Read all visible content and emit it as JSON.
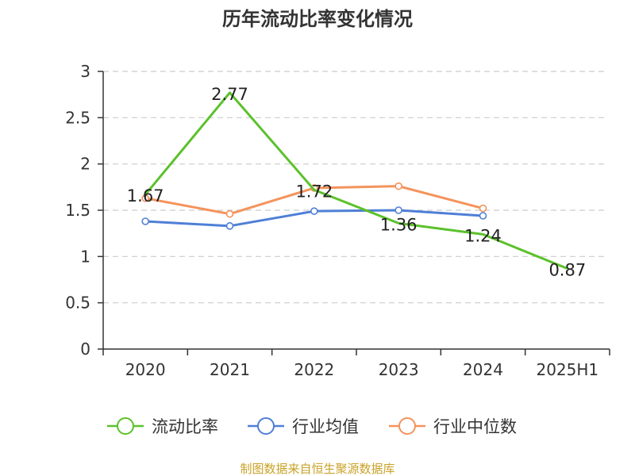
{
  "chart_data": {
    "type": "line",
    "title": "历年流动比率变化情况",
    "categories": [
      "2020",
      "2021",
      "2022",
      "2023",
      "2024",
      "2025H1"
    ],
    "ylim": [
      0,
      3
    ],
    "yticks": [
      "0",
      "0.5",
      "1",
      "1.5",
      "2",
      "2.5",
      "3"
    ],
    "grid": true,
    "legend_position": "bottom",
    "series": [
      {
        "name": "流动比率",
        "color": "#5cc12b",
        "values": [
          1.67,
          2.77,
          1.72,
          1.36,
          1.24,
          0.87
        ],
        "labels": [
          "1.67",
          "2.77",
          "1.72",
          "1.36",
          "1.24",
          "0.87"
        ],
        "show_markers": false
      },
      {
        "name": "行业均值",
        "color": "#4f7fd6",
        "values": [
          1.38,
          1.33,
          1.49,
          1.5,
          1.44,
          null
        ],
        "show_markers": true
      },
      {
        "name": "行业中位数",
        "color": "#f4935c",
        "values": [
          1.63,
          1.46,
          1.74,
          1.76,
          1.52,
          null
        ],
        "show_markers": true
      }
    ]
  },
  "source": "制图数据来自恒生聚源数据库"
}
